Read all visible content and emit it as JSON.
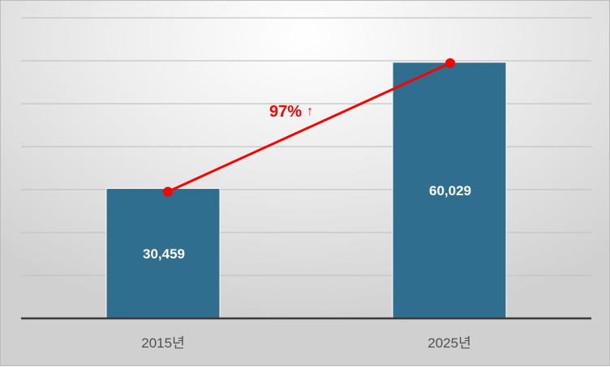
{
  "chart_data": {
    "type": "bar",
    "categories": [
      "2015년",
      "2025년"
    ],
    "values": [
      30459,
      60029
    ],
    "value_labels": [
      "30,459",
      "60,029"
    ],
    "ylim": [
      0,
      60000
    ],
    "y_gridlines": 7,
    "grid": true,
    "bar_color": "#2f6e8e",
    "trend_line": {
      "color": "#ff0000",
      "annotation": "97%",
      "annotation_arrow": "↑"
    }
  }
}
